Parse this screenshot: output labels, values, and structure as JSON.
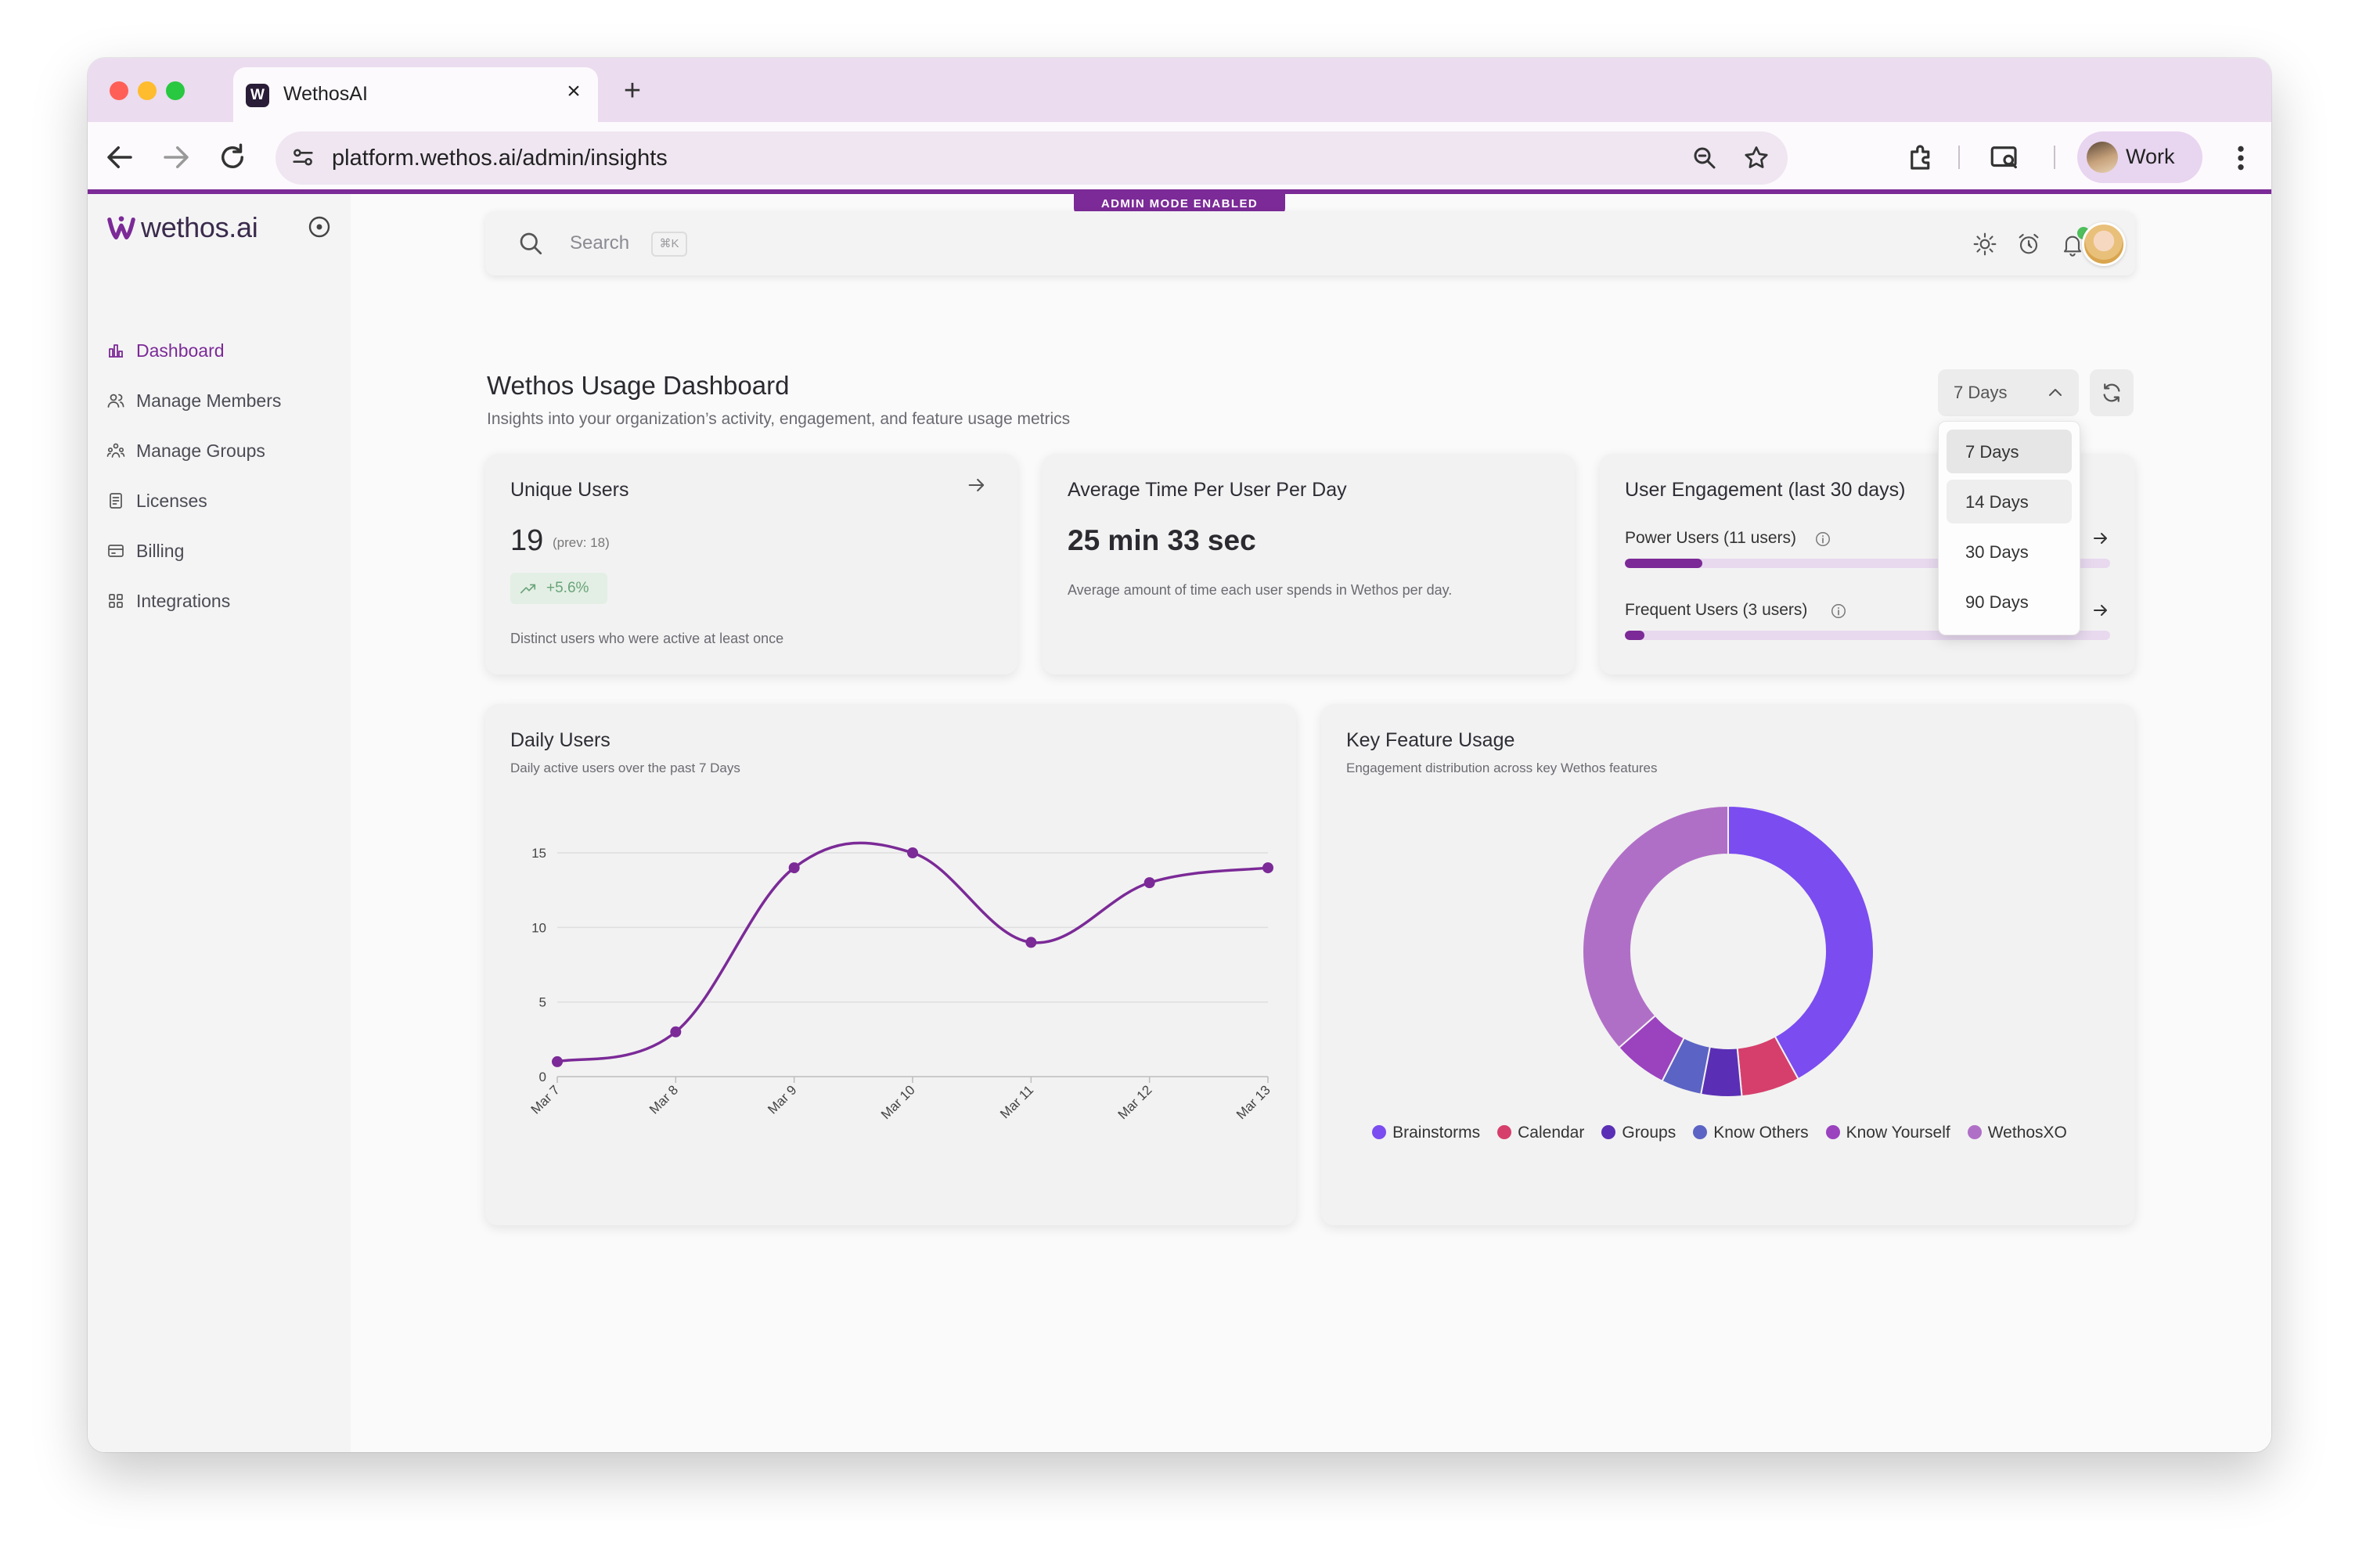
{
  "browser": {
    "tab_title": "WethosAI",
    "tab_favicon_letter": "W",
    "close_glyph": "×",
    "new_tab_glyph": "+",
    "url": "platform.wethos.ai/admin/insights",
    "profile_label": "Work",
    "traffic_light_colors": [
      "#ff5f57",
      "#febc2e",
      "#28c840"
    ]
  },
  "app": {
    "logo_text": "wethos.ai",
    "admin_badge": "ADMIN MODE ENABLED",
    "accent_color": "#7b2a97",
    "sidebar": [
      {
        "label": "Dashboard",
        "icon": "bar-chart-icon",
        "active": true
      },
      {
        "label": "Manage Members",
        "icon": "users-icon",
        "active": false
      },
      {
        "label": "Manage Groups",
        "icon": "group-icon",
        "active": false
      },
      {
        "label": "Licenses",
        "icon": "license-icon",
        "active": false
      },
      {
        "label": "Billing",
        "icon": "credit-card-icon",
        "active": false
      },
      {
        "label": "Integrations",
        "icon": "grid-icon",
        "active": false
      }
    ],
    "search": {
      "placeholder": "Search",
      "shortcut": "⌘K"
    }
  },
  "dashboard": {
    "title": "Wethos Usage Dashboard",
    "subtitle": "Insights into your organization’s activity, engagement, and feature usage metrics",
    "range": {
      "selected": "7 Days",
      "options": [
        "7 Days",
        "14 Days",
        "30 Days",
        "90 Days"
      ]
    }
  },
  "cards": {
    "unique_users": {
      "title": "Unique Users",
      "value": "19",
      "prev": "(prev: 18)",
      "change": "+5.6%",
      "description": "Distinct users who were active at least once"
    },
    "avg_time": {
      "title": "Average Time Per User Per Day",
      "value": "25 min 33 sec",
      "description": "Average amount of time each user spends in Wethos per day."
    },
    "engagement": {
      "title": "User Engagement (last 30 days)",
      "rows": [
        {
          "label": "Power Users (11 users)",
          "fraction": 0.16
        },
        {
          "label": "Frequent Users (3 users)",
          "fraction": 0.04
        }
      ]
    },
    "daily_users": {
      "title": "Daily Users",
      "subtitle": "Daily active users over the past 7 Days"
    },
    "feature_usage": {
      "title": "Key Feature Usage",
      "subtitle": "Engagement distribution across key Wethos features"
    }
  },
  "chart_data": [
    {
      "type": "line",
      "title": "Daily Users",
      "categories": [
        "Mar 7",
        "Mar 8",
        "Mar 9",
        "Mar 10",
        "Mar 11",
        "Mar 12",
        "Mar 13"
      ],
      "values": [
        1,
        3,
        14,
        15,
        9,
        13,
        14
      ],
      "yticks": [
        0,
        5,
        10,
        15
      ],
      "ylim": [
        0,
        15
      ],
      "color": "#7b2a97",
      "grid": true
    },
    {
      "type": "pie",
      "title": "Key Feature Usage",
      "donut": true,
      "slices": [
        {
          "name": "Brainstorms",
          "value": 42,
          "color": "#7b4cf0"
        },
        {
          "name": "Calendar",
          "value": 6.5,
          "color": "#d63f6c"
        },
        {
          "name": "Groups",
          "value": 4.5,
          "color": "#5a2fb5"
        },
        {
          "name": "Know Others",
          "value": 4.5,
          "color": "#5b63c4"
        },
        {
          "name": "Know Yourself",
          "value": 6,
          "color": "#9b42bf"
        },
        {
          "name": "WethosXO",
          "value": 36.5,
          "color": "#b06fc7"
        }
      ],
      "legend_position": "bottom"
    }
  ]
}
